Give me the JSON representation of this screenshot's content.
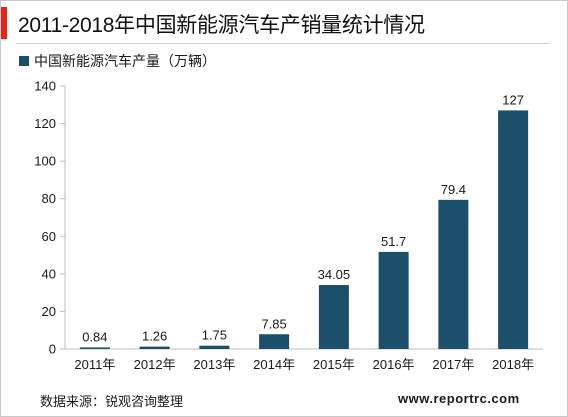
{
  "title": "2011-2018年中国新能源汽车产销量统计情况",
  "source": "数据来源：锐观咨询整理",
  "website": "www.reportrc.com",
  "colors": {
    "bar": "#1b4f6a",
    "accent": "#e0261a"
  },
  "chart_data": {
    "type": "bar",
    "categories": [
      "2011年",
      "2012年",
      "2013年",
      "2014年",
      "2015年",
      "2016年",
      "2017年",
      "2018年"
    ],
    "series": [
      {
        "name": "中国新能源汽车产量（万辆）",
        "values": [
          0.84,
          1.26,
          1.75,
          7.85,
          34.05,
          51.7,
          79.4,
          127
        ],
        "labels": [
          "0.84",
          "1.26",
          "1.75",
          "7.85",
          "34.05",
          "51.7",
          "79.4",
          "127"
        ]
      }
    ],
    "ylim": [
      0,
      140
    ],
    "yticks": [
      0,
      20,
      40,
      60,
      80,
      100,
      120,
      140
    ],
    "grid": false,
    "legend": "top-left"
  }
}
